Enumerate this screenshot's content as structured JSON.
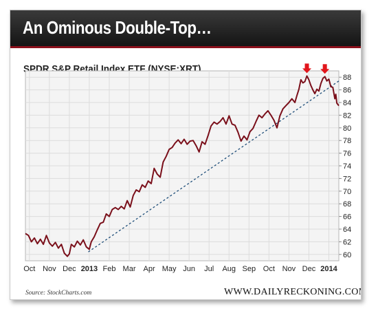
{
  "banner": {
    "title": "An Ominous Double-Top…"
  },
  "footer": {
    "source": "Source: StockCharts.com",
    "website": "WWW.DAILYRECKONING.COM"
  },
  "chart_data": {
    "type": "line",
    "title": "SPDR S&P Retail Index ETF (NYSE:XRT)",
    "xlabel": "",
    "ylabel": "",
    "ylim": [
      59,
      89
    ],
    "yticks": [
      60,
      62,
      64,
      66,
      68,
      70,
      72,
      74,
      76,
      78,
      80,
      82,
      84,
      86,
      88
    ],
    "y_axis_position": "right",
    "grid": true,
    "x_ticks": [
      {
        "label": "Oct",
        "month": 0.2,
        "bold": false
      },
      {
        "label": "Nov",
        "month": 1.2,
        "bold": false
      },
      {
        "label": "Dec",
        "month": 2.2,
        "bold": false
      },
      {
        "label": "2013",
        "month": 3.2,
        "bold": true
      },
      {
        "label": "Feb",
        "month": 4.2,
        "bold": false
      },
      {
        "label": "Mar",
        "month": 5.2,
        "bold": false
      },
      {
        "label": "Apr",
        "month": 6.2,
        "bold": false
      },
      {
        "label": "May",
        "month": 7.2,
        "bold": false
      },
      {
        "label": "Jun",
        "month": 8.2,
        "bold": false
      },
      {
        "label": "Jul",
        "month": 9.2,
        "bold": false
      },
      {
        "label": "Aug",
        "month": 10.2,
        "bold": false
      },
      {
        "label": "Sep",
        "month": 11.2,
        "bold": false
      },
      {
        "label": "Oct",
        "month": 12.2,
        "bold": false
      },
      {
        "label": "Nov",
        "month": 13.2,
        "bold": false
      },
      {
        "label": "Dec",
        "month": 14.2,
        "bold": false
      },
      {
        "label": "2014",
        "month": 15.2,
        "bold": true
      }
    ],
    "x_range": [
      0,
      15.7
    ],
    "series": [
      {
        "color": "#7a0f1a",
        "points": [
          [
            0.0,
            63.3
          ],
          [
            0.15,
            63.0
          ],
          [
            0.3,
            62.0
          ],
          [
            0.45,
            62.6
          ],
          [
            0.6,
            61.7
          ],
          [
            0.75,
            62.4
          ],
          [
            0.9,
            61.6
          ],
          [
            1.05,
            63.0
          ],
          [
            1.2,
            61.8
          ],
          [
            1.35,
            61.3
          ],
          [
            1.5,
            61.9
          ],
          [
            1.65,
            61.0
          ],
          [
            1.8,
            61.6
          ],
          [
            1.95,
            60.2
          ],
          [
            2.1,
            59.7
          ],
          [
            2.2,
            60.1
          ],
          [
            2.3,
            61.6
          ],
          [
            2.45,
            61.2
          ],
          [
            2.6,
            62.1
          ],
          [
            2.75,
            61.5
          ],
          [
            2.9,
            62.3
          ],
          [
            3.05,
            61.2
          ],
          [
            3.2,
            60.8
          ],
          [
            3.3,
            62.0
          ],
          [
            3.45,
            62.8
          ],
          [
            3.6,
            63.9
          ],
          [
            3.75,
            64.9
          ],
          [
            3.9,
            65.1
          ],
          [
            4.05,
            66.4
          ],
          [
            4.2,
            66.0
          ],
          [
            4.35,
            67.1
          ],
          [
            4.5,
            67.4
          ],
          [
            4.65,
            67.1
          ],
          [
            4.8,
            67.6
          ],
          [
            4.95,
            67.2
          ],
          [
            5.1,
            68.5
          ],
          [
            5.25,
            67.5
          ],
          [
            5.4,
            69.3
          ],
          [
            5.55,
            70.2
          ],
          [
            5.7,
            69.9
          ],
          [
            5.85,
            71.0
          ],
          [
            6.0,
            70.6
          ],
          [
            6.15,
            71.6
          ],
          [
            6.3,
            71.2
          ],
          [
            6.45,
            73.6
          ],
          [
            6.6,
            72.7
          ],
          [
            6.75,
            72.2
          ],
          [
            6.9,
            74.6
          ],
          [
            7.05,
            75.5
          ],
          [
            7.2,
            76.6
          ],
          [
            7.35,
            76.9
          ],
          [
            7.5,
            77.6
          ],
          [
            7.65,
            78.1
          ],
          [
            7.8,
            77.5
          ],
          [
            7.95,
            78.2
          ],
          [
            8.1,
            77.4
          ],
          [
            8.25,
            77.9
          ],
          [
            8.4,
            78.0
          ],
          [
            8.55,
            77.2
          ],
          [
            8.7,
            76.2
          ],
          [
            8.85,
            77.8
          ],
          [
            9.0,
            77.4
          ],
          [
            9.15,
            78.8
          ],
          [
            9.3,
            80.3
          ],
          [
            9.45,
            80.9
          ],
          [
            9.6,
            80.6
          ],
          [
            9.75,
            81.0
          ],
          [
            9.9,
            81.6
          ],
          [
            10.05,
            80.6
          ],
          [
            10.2,
            81.9
          ],
          [
            10.35,
            80.6
          ],
          [
            10.5,
            80.4
          ],
          [
            10.65,
            79.3
          ],
          [
            10.8,
            77.9
          ],
          [
            10.95,
            78.7
          ],
          [
            11.1,
            78.1
          ],
          [
            11.25,
            79.4
          ],
          [
            11.4,
            79.9
          ],
          [
            11.55,
            81.0
          ],
          [
            11.7,
            82.0
          ],
          [
            11.85,
            81.6
          ],
          [
            12.0,
            82.2
          ],
          [
            12.15,
            82.7
          ],
          [
            12.3,
            82.0
          ],
          [
            12.45,
            81.2
          ],
          [
            12.6,
            80.0
          ],
          [
            12.75,
            81.9
          ],
          [
            12.9,
            83.0
          ],
          [
            13.05,
            83.5
          ],
          [
            13.2,
            84.0
          ],
          [
            13.35,
            84.6
          ],
          [
            13.5,
            84.0
          ],
          [
            13.6,
            85.1
          ],
          [
            13.7,
            86.1
          ],
          [
            13.8,
            87.6
          ],
          [
            13.9,
            87.1
          ],
          [
            14.0,
            87.3
          ],
          [
            14.1,
            88.2
          ],
          [
            14.2,
            87.6
          ],
          [
            14.3,
            86.7
          ],
          [
            14.4,
            86.0
          ],
          [
            14.5,
            85.4
          ],
          [
            14.6,
            86.1
          ],
          [
            14.7,
            85.8
          ],
          [
            14.8,
            87.0
          ],
          [
            14.9,
            87.8
          ],
          [
            15.0,
            88.1
          ],
          [
            15.1,
            87.4
          ],
          [
            15.2,
            87.7
          ],
          [
            15.3,
            86.5
          ],
          [
            15.4,
            86.4
          ],
          [
            15.5,
            84.6
          ],
          [
            15.55,
            85.3
          ],
          [
            15.6,
            83.9
          ],
          [
            15.7,
            83.5
          ]
        ]
      }
    ],
    "trendline": {
      "from": [
        3.15,
        60.4
      ],
      "to": [
        15.7,
        87.4
      ],
      "color": "#1f4e79",
      "dashed": true
    },
    "annotations": [
      {
        "type": "down-arrow",
        "x": 14.1,
        "y": 88.2,
        "color": "#e1161c"
      },
      {
        "type": "down-arrow",
        "x": 15.0,
        "y": 88.1,
        "color": "#e1161c"
      }
    ]
  }
}
